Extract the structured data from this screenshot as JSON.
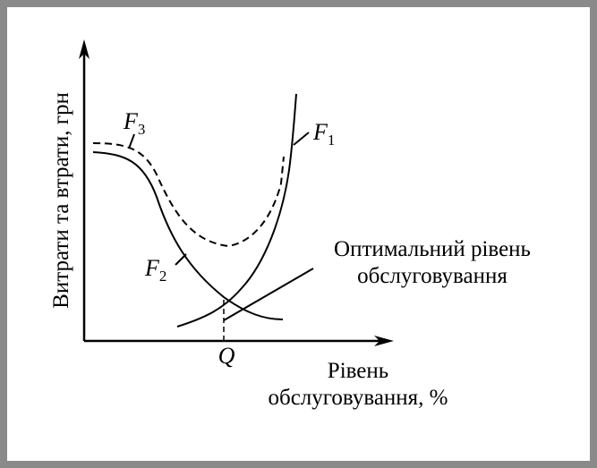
{
  "axes": {
    "y_label": "Витрати та втрати, грн",
    "x_label_line1": "Рівень",
    "x_label_line2": "обслуговування, %",
    "x_marker": "Q"
  },
  "curves": [
    {
      "symbol": "F",
      "subscript": "1"
    },
    {
      "symbol": "F",
      "subscript": "2"
    },
    {
      "symbol": "F",
      "subscript": "3"
    }
  ],
  "annotation": {
    "line1": "Оптимальний рівень",
    "line2": "обслуговування"
  }
}
